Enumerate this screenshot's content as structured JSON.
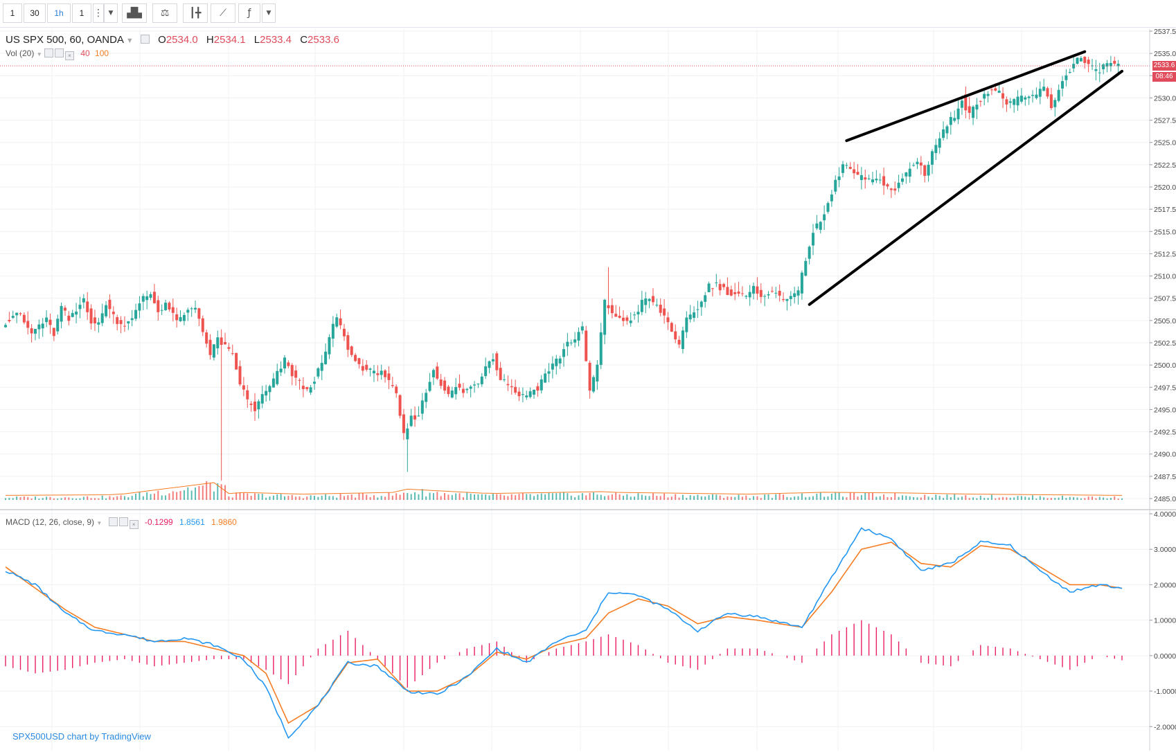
{
  "toolbar": {
    "buttons": [
      {
        "label": "1",
        "active": false
      },
      {
        "label": "30",
        "active": false
      },
      {
        "label": "1h",
        "active": true
      },
      {
        "label": "1",
        "active": false
      }
    ],
    "icons": [
      "more-dots-icon",
      "dropdown-chevron-icon",
      "bars-style-icon",
      "compare-scales-icon",
      "candles-icon",
      "indicators-line-icon",
      "fx-indicator-icon",
      "dropdown-chevron-icon"
    ]
  },
  "legend": {
    "symbol": "US SPX 500, 60, OANDA",
    "open_key": "O",
    "open": "2534.0",
    "high_key": "H",
    "high": "2534.1",
    "low_key": "L",
    "low": "2533.4",
    "close_key": "C",
    "close": "2533.6"
  },
  "volume_legend": {
    "label": "Vol (20)",
    "v1": "40",
    "v2": "100"
  },
  "macd_legend": {
    "label": "MACD (12, 26, close, 9)",
    "hist": "-0.1299",
    "macd": "1.8561",
    "signal": "1.9860"
  },
  "credit": "SPX500USD chart by TradingView",
  "current_price": "2533.6",
  "countdown": "08:46",
  "colors": {
    "up": "#26a69a",
    "down": "#ef5350",
    "macd": "#2196f3",
    "signal": "#f57c22",
    "hist": "#e91e63",
    "price_line": "#e04c5b"
  },
  "chart_data": {
    "type": "candlestick",
    "price_axis": {
      "min": 2485.0,
      "max": 2537.5,
      "ticks": [
        "2537.5",
        "2535.0",
        "2532.5",
        "2530.0",
        "2527.5",
        "2525.0",
        "2522.5",
        "2520.0",
        "2517.5",
        "2515.0",
        "2512.5",
        "2510.0",
        "2507.5",
        "2505.0",
        "2502.5",
        "2500.0",
        "2497.5",
        "2495.0",
        "2492.5",
        "2490.0",
        "2487.5",
        "2485.0"
      ]
    },
    "macd_axis": {
      "min": -2.6,
      "max": 4.0,
      "ticks": [
        "4.0000",
        "3.0000",
        "2.0000",
        "1.0000",
        "0.0000",
        "-1.0000",
        "-2.0000"
      ]
    },
    "close_path": [
      [
        0,
        2504.5
      ],
      [
        4,
        2506
      ],
      [
        8,
        2503.5
      ],
      [
        10,
        2504.5
      ],
      [
        12,
        2505
      ],
      [
        14,
        2503.5
      ],
      [
        16,
        2506.5
      ],
      [
        18,
        2505
      ],
      [
        20,
        2506
      ],
      [
        22,
        2507.5
      ],
      [
        24,
        2505
      ],
      [
        26,
        2504.5
      ],
      [
        28,
        2507
      ],
      [
        30,
        2505.5
      ],
      [
        32,
        2504.5
      ],
      [
        34,
        2505
      ],
      [
        36,
        2506
      ],
      [
        38,
        2507.5
      ],
      [
        40,
        2508
      ],
      [
        42,
        2506
      ],
      [
        44,
        2507
      ],
      [
        46,
        2505.5
      ],
      [
        48,
        2505
      ],
      [
        50,
        2506
      ],
      [
        52,
        2506.5
      ],
      [
        54,
        2504
      ],
      [
        56,
        2501
      ],
      [
        58,
        2503
      ],
      [
        60,
        2502
      ],
      [
        62,
        2501
      ],
      [
        64,
        2498
      ],
      [
        66,
        2496
      ],
      [
        68,
        2495
      ],
      [
        70,
        2496.5
      ],
      [
        72,
        2497.5
      ],
      [
        74,
        2499
      ],
      [
        76,
        2500.5
      ],
      [
        78,
        2499
      ],
      [
        80,
        2498
      ],
      [
        82,
        2497
      ],
      [
        84,
        2498.5
      ],
      [
        86,
        2500
      ],
      [
        88,
        2503
      ],
      [
        90,
        2505.5
      ],
      [
        92,
        2503
      ],
      [
        94,
        2501
      ],
      [
        96,
        2500
      ],
      [
        98,
        2499.5
      ],
      [
        100,
        2499
      ],
      [
        102,
        2499.5
      ],
      [
        104,
        2498
      ],
      [
        106,
        2496.5
      ],
      [
        108,
        2492
      ],
      [
        110,
        2494
      ],
      [
        112,
        2494.5
      ],
      [
        114,
        2497
      ],
      [
        116,
        2499.5
      ],
      [
        118,
        2498
      ],
      [
        120,
        2496.5
      ],
      [
        122,
        2497.5
      ],
      [
        124,
        2497
      ],
      [
        126,
        2497.5
      ],
      [
        128,
        2498
      ],
      [
        130,
        2500
      ],
      [
        132,
        2501
      ],
      [
        134,
        2498.5
      ],
      [
        136,
        2498
      ],
      [
        138,
        2497
      ],
      [
        140,
        2496.5
      ],
      [
        142,
        2497
      ],
      [
        144,
        2497.5
      ],
      [
        146,
        2499
      ],
      [
        148,
        2500
      ],
      [
        150,
        2501
      ],
      [
        152,
        2502.5
      ],
      [
        154,
        2503
      ],
      [
        156,
        2504
      ],
      [
        158,
        2497
      ],
      [
        160,
        2500
      ],
      [
        162,
        2507
      ],
      [
        164,
        2506
      ],
      [
        166,
        2505
      ],
      [
        168,
        2505
      ],
      [
        170,
        2505.5
      ],
      [
        172,
        2507
      ],
      [
        174,
        2507.5
      ],
      [
        176,
        2506.5
      ],
      [
        178,
        2505.5
      ],
      [
        180,
        2504
      ],
      [
        182,
        2502
      ],
      [
        184,
        2505
      ],
      [
        186,
        2506
      ],
      [
        188,
        2507
      ],
      [
        190,
        2509
      ],
      [
        192,
        2509
      ],
      [
        194,
        2508.5
      ],
      [
        196,
        2508
      ],
      [
        198,
        2508
      ],
      [
        200,
        2507.5
      ],
      [
        202,
        2508.5
      ],
      [
        204,
        2508
      ],
      [
        206,
        2508
      ],
      [
        208,
        2508
      ],
      [
        210,
        2507.5
      ],
      [
        212,
        2508
      ],
      [
        214,
        2508
      ],
      [
        216,
        2512
      ],
      [
        218,
        2515
      ],
      [
        220,
        2516
      ],
      [
        222,
        2518
      ],
      [
        224,
        2520.5
      ],
      [
        226,
        2522.5
      ],
      [
        228,
        2522
      ],
      [
        230,
        2521
      ],
      [
        232,
        2521
      ],
      [
        234,
        2520.5
      ],
      [
        236,
        2521
      ],
      [
        238,
        2520
      ],
      [
        240,
        2519.5
      ],
      [
        242,
        2521
      ],
      [
        244,
        2522
      ],
      [
        246,
        2523
      ],
      [
        248,
        2521.5
      ],
      [
        250,
        2524
      ],
      [
        252,
        2525.5
      ],
      [
        254,
        2527
      ],
      [
        256,
        2528
      ],
      [
        258,
        2530
      ],
      [
        260,
        2528
      ],
      [
        262,
        2529.5
      ],
      [
        264,
        2530.5
      ],
      [
        266,
        2531
      ],
      [
        268,
        2530.5
      ],
      [
        270,
        2529.5
      ],
      [
        272,
        2529.5
      ],
      [
        274,
        2530
      ],
      [
        276,
        2530
      ],
      [
        278,
        2530.5
      ],
      [
        280,
        2531
      ],
      [
        282,
        2529
      ],
      [
        284,
        2531
      ],
      [
        286,
        2532.5
      ],
      [
        288,
        2534
      ],
      [
        290,
        2534.5
      ],
      [
        292,
        2533.5
      ],
      [
        294,
        2533
      ],
      [
        296,
        2533.5
      ],
      [
        298,
        2534
      ],
      [
        300,
        2533.6
      ]
    ],
    "trendlines": [
      {
        "name": "upper",
        "from": {
          "bar": 226,
          "price": 2525.2
        },
        "to": {
          "bar": 290,
          "price": 2535.2
        }
      },
      {
        "name": "lower",
        "from": {
          "bar": 216,
          "price": 2506.8
        },
        "to": {
          "bar": 300,
          "price": 2533.0
        }
      }
    ],
    "macd_path": [
      [
        0,
        2.4
      ],
      [
        8,
        2.0
      ],
      [
        16,
        1.2
      ],
      [
        24,
        0.7
      ],
      [
        32,
        0.6
      ],
      [
        40,
        0.4
      ],
      [
        48,
        0.5
      ],
      [
        56,
        0.3
      ],
      [
        64,
        -0.1
      ],
      [
        70,
        -0.9
      ],
      [
        76,
        -2.3
      ],
      [
        84,
        -1.4
      ],
      [
        92,
        -0.2
      ],
      [
        100,
        -0.3
      ],
      [
        108,
        -1.0
      ],
      [
        116,
        -1.1
      ],
      [
        124,
        -0.6
      ],
      [
        132,
        0.2
      ],
      [
        140,
        -0.2
      ],
      [
        148,
        0.4
      ],
      [
        156,
        0.7
      ],
      [
        162,
        1.8
      ],
      [
        170,
        1.7
      ],
      [
        178,
        1.3
      ],
      [
        186,
        0.7
      ],
      [
        194,
        1.2
      ],
      [
        202,
        1.1
      ],
      [
        214,
        0.8
      ],
      [
        222,
        2.2
      ],
      [
        230,
        3.6
      ],
      [
        238,
        3.3
      ],
      [
        246,
        2.4
      ],
      [
        254,
        2.6
      ],
      [
        262,
        3.2
      ],
      [
        270,
        3.1
      ],
      [
        278,
        2.4
      ],
      [
        286,
        1.8
      ],
      [
        294,
        2.0
      ],
      [
        300,
        1.9
      ]
    ],
    "signal_path": [
      [
        0,
        2.5
      ],
      [
        8,
        1.9
      ],
      [
        16,
        1.3
      ],
      [
        24,
        0.8
      ],
      [
        32,
        0.6
      ],
      [
        40,
        0.4
      ],
      [
        48,
        0.4
      ],
      [
        56,
        0.2
      ],
      [
        64,
        0.0
      ],
      [
        70,
        -0.5
      ],
      [
        76,
        -1.9
      ],
      [
        84,
        -1.4
      ],
      [
        92,
        -0.2
      ],
      [
        100,
        -0.1
      ],
      [
        108,
        -1.0
      ],
      [
        116,
        -1.0
      ],
      [
        124,
        -0.6
      ],
      [
        132,
        0.1
      ],
      [
        140,
        -0.1
      ],
      [
        148,
        0.3
      ],
      [
        156,
        0.5
      ],
      [
        162,
        1.2
      ],
      [
        170,
        1.6
      ],
      [
        178,
        1.4
      ],
      [
        186,
        0.9
      ],
      [
        194,
        1.1
      ],
      [
        202,
        1.0
      ],
      [
        214,
        0.8
      ],
      [
        222,
        1.8
      ],
      [
        230,
        3.0
      ],
      [
        238,
        3.2
      ],
      [
        246,
        2.6
      ],
      [
        254,
        2.5
      ],
      [
        262,
        3.1
      ],
      [
        270,
        3.0
      ],
      [
        278,
        2.5
      ],
      [
        286,
        2.0
      ],
      [
        294,
        2.0
      ],
      [
        300,
        1.9
      ]
    ],
    "hist_path": [
      [
        0,
        -0.3
      ],
      [
        8,
        -0.5
      ],
      [
        16,
        -0.4
      ],
      [
        24,
        -0.2
      ],
      [
        32,
        -0.1
      ],
      [
        40,
        -0.3
      ],
      [
        48,
        -0.2
      ],
      [
        56,
        -0.1
      ],
      [
        64,
        -0.1
      ],
      [
        70,
        -0.4
      ],
      [
        76,
        -0.8
      ],
      [
        84,
        0.2
      ],
      [
        92,
        0.7
      ],
      [
        100,
        -0.1
      ],
      [
        108,
        -0.9
      ],
      [
        116,
        -0.2
      ],
      [
        124,
        0.2
      ],
      [
        132,
        0.4
      ],
      [
        140,
        -0.2
      ],
      [
        148,
        0.2
      ],
      [
        156,
        0.4
      ],
      [
        162,
        0.6
      ],
      [
        170,
        0.3
      ],
      [
        178,
        -0.2
      ],
      [
        186,
        -0.4
      ],
      [
        194,
        0.2
      ],
      [
        202,
        0.2
      ],
      [
        214,
        -0.2
      ],
      [
        222,
        0.6
      ],
      [
        230,
        1.0
      ],
      [
        238,
        0.6
      ],
      [
        246,
        -0.2
      ],
      [
        254,
        -0.3
      ],
      [
        262,
        0.3
      ],
      [
        270,
        0.2
      ],
      [
        278,
        -0.1
      ],
      [
        286,
        -0.4
      ],
      [
        294,
        0.0
      ],
      [
        300,
        -0.13
      ]
    ],
    "volume_path": [
      [
        0,
        4
      ],
      [
        30,
        5
      ],
      [
        58,
        26
      ],
      [
        60,
        7
      ],
      [
        62,
        9
      ],
      [
        80,
        6
      ],
      [
        106,
        9
      ],
      [
        108,
        14
      ],
      [
        130,
        7
      ],
      [
        160,
        10
      ],
      [
        162,
        9
      ],
      [
        200,
        6
      ],
      [
        220,
        9
      ],
      [
        240,
        8
      ],
      [
        260,
        6
      ],
      [
        280,
        5
      ],
      [
        300,
        4
      ]
    ]
  }
}
